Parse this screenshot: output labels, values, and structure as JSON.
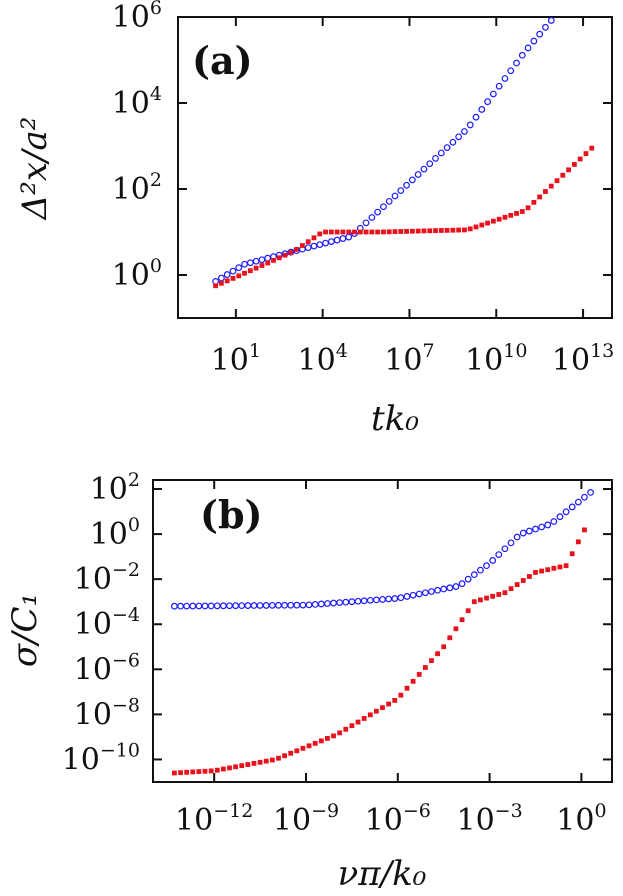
{
  "chart_data": [
    {
      "type": "scatter",
      "panel_label": "(a)",
      "xscale": "log",
      "yscale": "log",
      "xlabel": "tk₀",
      "ylabel": "Δ²x/a²",
      "xlim_exp": [
        -1,
        14
      ],
      "ylim_exp": [
        -1,
        6
      ],
      "x_ticks": [
        {
          "base": "10",
          "exp": "1",
          "v": 1
        },
        {
          "base": "10",
          "exp": "4",
          "v": 4
        },
        {
          "base": "10",
          "exp": "7",
          "v": 7
        },
        {
          "base": "10",
          "exp": "10",
          "v": 10
        },
        {
          "base": "10",
          "exp": "13",
          "v": 13
        }
      ],
      "y_ticks": [
        {
          "base": "10",
          "exp": "0",
          "v": 0
        },
        {
          "base": "10",
          "exp": "2",
          "v": 2
        },
        {
          "base": "10",
          "exp": "4",
          "v": 4
        },
        {
          "base": "10",
          "exp": "6",
          "v": 6
        }
      ],
      "series": [
        {
          "name": "blue-open-circles",
          "color": "#1a1aff",
          "marker": "open-circle",
          "x_log": [
            0.3,
            1.3,
            5,
            9,
            11,
            12
          ],
          "y_log": [
            -0.15,
            0.25,
            0.9,
            3.4,
            5.2,
            6.0
          ],
          "start_log": 0.3,
          "end_log": 12.0,
          "step": 0.2
        },
        {
          "name": "red-filled-squares",
          "color": "#e8121c",
          "marker": "filled-square",
          "x_log": [
            0.3,
            1,
            3,
            4,
            6,
            9,
            11,
            13.3
          ],
          "y_log": [
            -0.25,
            -0.05,
            0.55,
            1.0,
            1.0,
            1.05,
            1.5,
            2.95
          ],
          "start_log": 0.3,
          "end_log": 13.3,
          "step": 0.2
        }
      ]
    },
    {
      "type": "scatter",
      "panel_label": "(b)",
      "xscale": "log",
      "yscale": "log",
      "xlabel": "νπ/k₀",
      "ylabel": "σ/C₁",
      "xlim_exp": [
        -14,
        1
      ],
      "ylim_exp": [
        -11,
        2.4
      ],
      "x_ticks": [
        {
          "base": "10",
          "exp": "−12",
          "v": -12
        },
        {
          "base": "10",
          "exp": "−9",
          "v": -9
        },
        {
          "base": "10",
          "exp": "−6",
          "v": -6
        },
        {
          "base": "10",
          "exp": "−3",
          "v": -3
        },
        {
          "base": "10",
          "exp": "0",
          "v": 0
        }
      ],
      "y_ticks": [
        {
          "base": "10",
          "exp": "2",
          "v": 2
        },
        {
          "base": "10",
          "exp": "0",
          "v": 0
        },
        {
          "base": "10",
          "exp": "−2",
          "v": -2
        },
        {
          "base": "10",
          "exp": "−4",
          "v": -4
        },
        {
          "base": "10",
          "exp": "−6",
          "v": -6
        },
        {
          "base": "10",
          "exp": "−8",
          "v": -8
        },
        {
          "base": "10",
          "exp": "−10",
          "v": -10
        }
      ],
      "series": [
        {
          "name": "blue-open-circles",
          "color": "#1a1aff",
          "marker": "open-circle",
          "x_log": [
            -13.3,
            -9,
            -6,
            -4,
            -3,
            -2,
            -1,
            0.3
          ],
          "y_log": [
            -3.2,
            -3.15,
            -2.85,
            -2.3,
            -1.3,
            0.0,
            0.45,
            1.85
          ],
          "start_log": -13.3,
          "end_log": 0.3,
          "step": 0.2
        },
        {
          "name": "red-filled-squares",
          "color": "#e8121c",
          "marker": "filled-square",
          "x_log": [
            -13.3,
            -12,
            -10,
            -8,
            -6,
            -4.5,
            -3.5,
            -2.5,
            -1.5,
            -0.5,
            0.2
          ],
          "y_log": [
            -10.6,
            -10.5,
            -10.0,
            -8.9,
            -7.3,
            -5.0,
            -3.0,
            -2.6,
            -1.7,
            -1.4,
            0.45
          ],
          "start_log": -13.3,
          "end_log": 0.2,
          "step": 0.2
        }
      ]
    }
  ]
}
